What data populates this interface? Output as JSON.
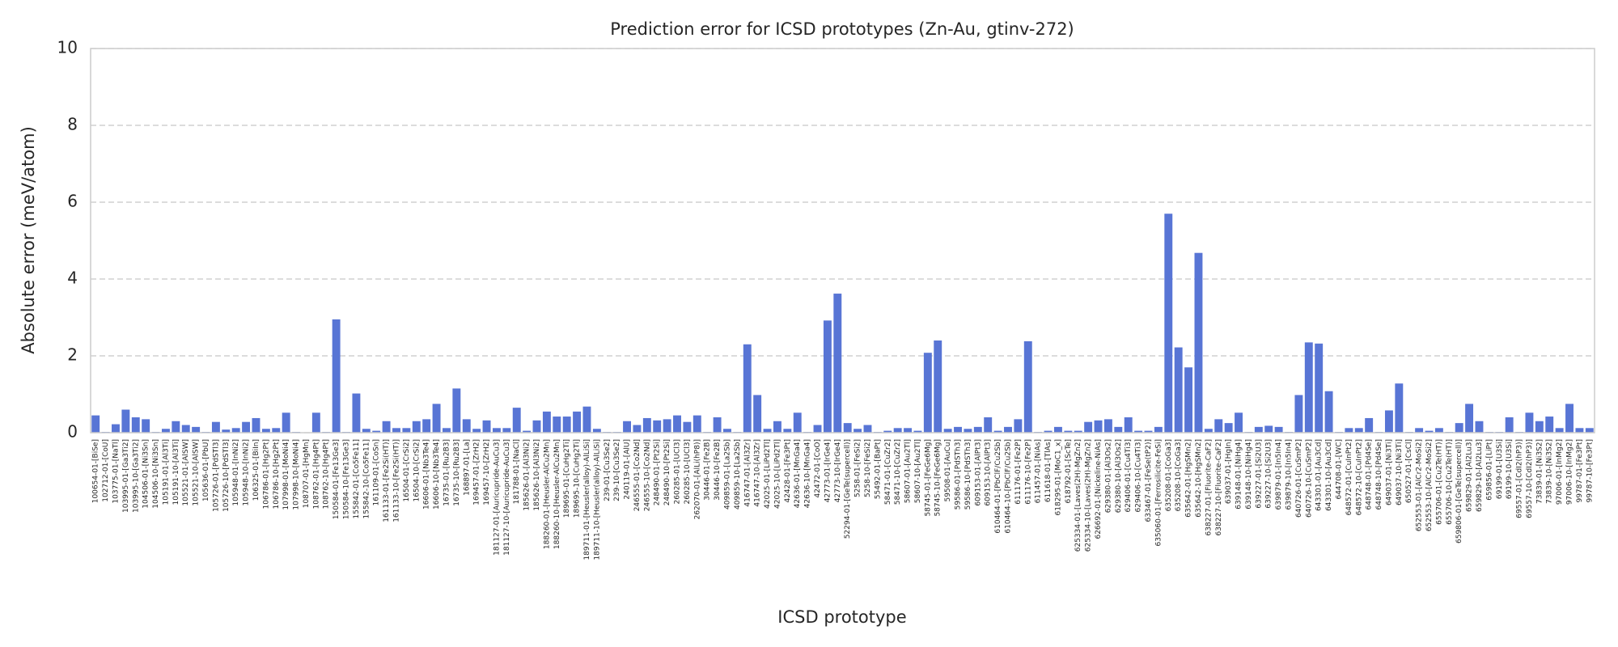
{
  "chart_data": {
    "type": "bar",
    "title": "Prediction error for ICSD prototypes (Zn-Au, gtinv-272)",
    "xlabel": "ICSD prototype",
    "ylabel": "Absolute error (meV/atom)",
    "color": "#5875d5",
    "grid": true,
    "ylim": [
      0,
      10
    ],
    "yticks": [
      0,
      2,
      4,
      6,
      8,
      10
    ],
    "categories": [
      "100654-01-[BiSe]",
      "102712-01-[CoU]",
      "103775-01-[NaTl]",
      "103995-01-[Ga3Ti2]",
      "103995-10-[Ga3Ti2]",
      "104506-01-[Ni3Sn]",
      "104506-10-[Ni3Sn]",
      "105191-01-[Al3Ti]",
      "105191-10-[Al3Ti]",
      "105521-01-[AlSW]",
      "105521-10-[AlSW]",
      "105636-01-[PbU]",
      "105726-01-[PdSTl3]",
      "105726-10-[PdSTl3]",
      "105948-01-[InNi2]",
      "105948-10-[InNi2]",
      "106325-01-[BiIn]",
      "106786-01-[Hg2Pt]",
      "106786-10-[Hg2Pt]",
      "107998-01-[MoNi4]",
      "107998-10-[MoNi4]",
      "108707-01-[HgMn]",
      "108762-01-[Hg4Pt]",
      "108762-10-[Hg4Pt]",
      "150584-01-[Fe13Ge3]",
      "150584-10-[Fe13Ge3]",
      "155842-01-[Co5Fe11]",
      "155842-10-[Co5Fe11]",
      "161109-01-[CoSn]",
      "161133-01-[Fe2Si(HT)]",
      "161133-10-[Fe2Si(HT)]",
      "16504-01-[CrSi2]",
      "16504-10-[CrSi2]",
      "16606-01-[Nb3Te4]",
      "16606-10-[Nb3Te4]",
      "16735-01-[Ru2B3]",
      "16735-10-[Ru2B3]",
      "168897-01-[La]",
      "169457-01-[ZrH2]",
      "169457-10-[ZrH2]",
      "181127-01-[Auricupride-AuCu3]",
      "181127-10-[Auricupride-AuCu3]",
      "181788-01-[NaCl]",
      "185626-01-[Al3Ni2]",
      "185626-10-[Al3Ni2]",
      "188260-01-[Heusler-AlCu2Mn]",
      "188260-10-[Heusler-AlCu2Mn]",
      "189695-01-[CuHg2Ti]",
      "189695-10-[CuHg2Ti]",
      "189711-01-[Heusler(alloy)-AlLiSi]",
      "189711-10-[Heusler(alloy)-AlLiSi]",
      "239-01-[Cu3Se2]",
      "239-10-[Cu3Se2]",
      "240119-01-[AlU]",
      "246555-01-[Co2Nd]",
      "246555-10-[Co2Nd]",
      "248490-01-[Pt2Si]",
      "248490-10-[Pt2Si]",
      "260285-01-[UCl3]",
      "260285-10-[UCl3]",
      "262070-01-[AlLi(hP8)]",
      "30446-01-[Fe2B]",
      "30446-10-[Fe2B]",
      "409859-01-[La2Sb]",
      "409859-10-[La2Sb]",
      "416747-01-[Al3Zr]",
      "416747-10-[Al3Zr]",
      "42025-01-[LiPd2Tl]",
      "42025-10-[LiPd2Tl]",
      "42428-01-[Fe3Pt]",
      "42636-01-[MnGa4]",
      "42636-10-[MnGa4]",
      "42472-01-[CoO]",
      "42773-01-[IrGe4]",
      "42773-10-[IrGe4]",
      "52294-01-[GeTe(supercell)]",
      "5258-01-[FeSi2]",
      "5258-10-[FeSi2]",
      "55492-01-[BaPt]",
      "58471-01-[CuZr2]",
      "58471-10-[CuZr2]",
      "58607-01-[Au2Tl]",
      "58607-10-[Au2Tl]",
      "58745-01-[FeGe6Mg]",
      "58745-10-[FeGe6Mg]",
      "59508-01-[AuCu]",
      "59586-01-[PdSTh3]",
      "59586-10-[PdSTh3]",
      "609153-01-[AlPt3]",
      "609153-10-[AlPt3]",
      "610464-01-[PbClF/Cu2Sb]",
      "610464-10-[PbClF/Cu2Sb]",
      "611176-01-[Fe2P]",
      "611176-10-[Fe2P]",
      "611457-01-[NiAs]",
      "611618-01-[TlAs]",
      "618295-01-[MoC1_x]",
      "618792-01-[ScTe]",
      "625334-01-[Laves(2H)-MgZn2]",
      "625334-10-[Laves(2H)-MgZn2]",
      "626692-01-[Nickeline-NiAs]",
      "629380-01-[Al3Os2]",
      "629380-10-[Al3Os2]",
      "629406-01-[Cu4Ti3]",
      "629406-10-[Cu4Ti3]",
      "633467-01-[FeSe(tP2)]",
      "635060-01-[Ferrosilicite-FeSi]",
      "635208-01-[CoGa3]",
      "635208-10-[CoGa3]",
      "635642-01-[HgSMn2]",
      "635642-10-[HgSMn2]",
      "638227-01-[Fluorite-CaF2]",
      "638227-10-[Fluorite-CaF2]",
      "639037-01-[HgIn]",
      "639148-01-[NiHg4]",
      "639148-10-[NiHg4]",
      "639227-01-[Si2U3]",
      "639227-10-[Si2U3]",
      "639879-01-[In5In4]",
      "639879-10-[In5In4]",
      "640726-01-[CuSmP2]",
      "640726-10-[CuSmP2]",
      "643301-01-[Au3Cd]",
      "643301-10-[Au3Cd]",
      "644708-01-[WC]",
      "648572-01-[CuInPt2]",
      "648572-10-[CuInPt2]",
      "648748-01-[Pd4Se]",
      "648748-10-[Pd4Se]",
      "649037-01-[Ni3Ti]",
      "649037-10-[Ni3Ti]",
      "650527-01-[CsCl]",
      "652553-01-[AlCr2-MoSi2]",
      "652553-10-[AlCr2-MoSi2]",
      "655706-01-[Cu2Te(HT)]",
      "655706-10-[Cu2Te(HT)]",
      "659806-01-[GeTe(supercell)]",
      "659829-01-[Al2Lu3]",
      "659829-10-[Al2Lu3]",
      "659856-01-[LiPt]",
      "69199-01-[U3Si]",
      "69199-10-[U3Si]",
      "69557-01-[CdI2(hP3)]",
      "69557-10-[CdI2(hP3)]",
      "73839-01-[Ni3S2]",
      "73839-10-[Ni3S2]",
      "97006-01-[InMg2]",
      "97006-10-[InMg2]",
      "99787-01-[Fe3Pt]",
      "99787-10-[Fe3Pt]"
    ],
    "values": [
      0.45,
      0.02,
      0.22,
      0.6,
      0.4,
      0.35,
      0.02,
      0.1,
      0.3,
      0.2,
      0.15,
      0.02,
      0.28,
      0.08,
      0.12,
      0.28,
      0.38,
      0.1,
      0.12,
      0.52,
      0.02,
      0.0,
      0.52,
      0.02,
      2.95,
      0.02,
      1.02,
      0.1,
      0.05,
      0.3,
      0.12,
      0.12,
      0.3,
      0.35,
      0.75,
      0.12,
      1.15,
      0.35,
      0.1,
      0.32,
      0.12,
      0.12,
      0.65,
      0.05,
      0.32,
      0.55,
      0.42,
      0.42,
      0.55,
      0.68,
      0.1,
      0.02,
      0.02,
      0.3,
      0.2,
      0.38,
      0.32,
      0.35,
      0.45,
      0.28,
      0.45,
      0.02,
      0.4,
      0.1,
      0.02,
      2.3,
      0.98,
      0.1,
      0.3,
      0.1,
      0.52,
      0.02,
      0.2,
      2.92,
      3.62,
      0.25,
      0.1,
      0.2,
      0.02,
      0.05,
      0.12,
      0.12,
      0.05,
      2.08,
      2.4,
      0.1,
      0.15,
      0.1,
      0.15,
      0.4,
      0.05,
      0.15,
      0.35,
      2.38,
      0.02,
      0.05,
      0.15,
      0.05,
      0.05,
      0.28,
      0.32,
      0.35,
      0.15,
      0.4,
      0.05,
      0.05,
      0.15,
      5.7,
      2.22,
      1.7,
      4.68,
      0.1,
      0.35,
      0.25,
      0.52,
      0.02,
      0.15,
      0.18,
      0.15,
      0.02,
      0.98,
      2.35,
      2.32,
      1.08,
      0.02,
      0.12,
      0.12,
      0.38,
      0.02,
      0.58,
      1.28,
      0.02,
      0.12,
      0.05,
      0.12,
      0.02,
      0.25,
      0.75,
      0.3,
      0.02,
      0.02,
      0.4,
      0.02,
      0.52,
      0.3,
      0.42,
      0.12,
      0.75,
      0.12,
      0.12
    ]
  }
}
